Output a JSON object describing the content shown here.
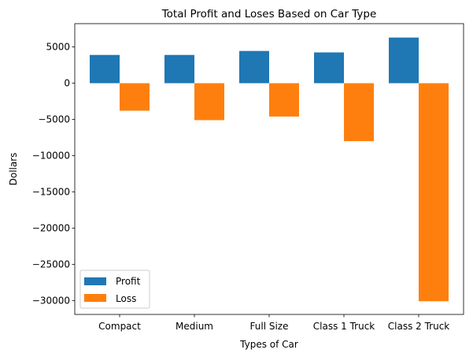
{
  "chart_data": {
    "type": "bar",
    "title": "Total Profit and Loses Based on Car Type",
    "xlabel": "Types of Car",
    "ylabel": "Dollars",
    "categories": [
      "Compact",
      "Medium",
      "Full Size",
      "Class 1 Truck",
      "Class 2 Truck"
    ],
    "series": [
      {
        "name": "Profit",
        "values": [
          3900,
          3900,
          4450,
          4250,
          6300
        ],
        "color": "#1f77b4"
      },
      {
        "name": "Loss",
        "values": [
          -3800,
          -5100,
          -4600,
          -8000,
          -30100
        ],
        "color": "#ff7f0e"
      }
    ],
    "ylim": [
      -31920,
      8220
    ],
    "yticks": [
      5000,
      0,
      -5000,
      -10000,
      -15000,
      -20000,
      -25000,
      -30000
    ],
    "ytick_labels": [
      "5000",
      "0",
      "−5000",
      "−10000",
      "−15000",
      "−20000",
      "−25000",
      "−30000"
    ],
    "grid": false,
    "legend_position": "lower-left"
  }
}
